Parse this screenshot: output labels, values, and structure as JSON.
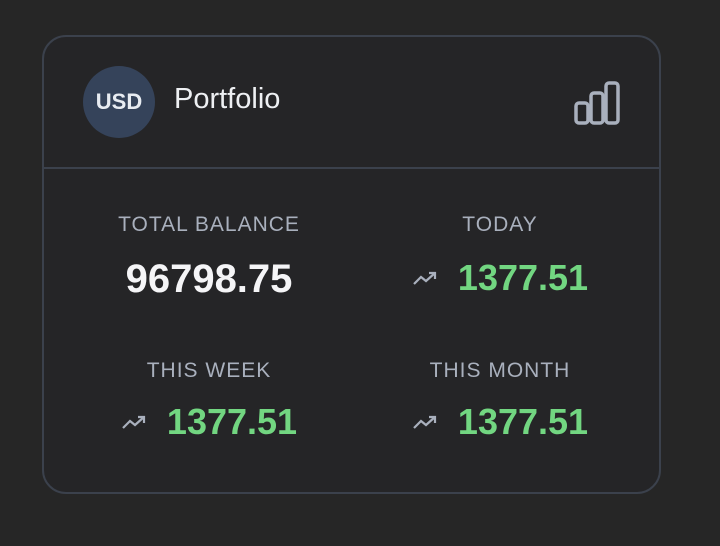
{
  "header": {
    "currency": "USD",
    "title": "Portfolio"
  },
  "stats": [
    {
      "label": "TOTAL BALANCE",
      "value": 96798.75
    },
    {
      "label": "TODAY",
      "value": 1377.51
    },
    {
      "label": "THIS WEEK",
      "value": 1377.51
    },
    {
      "label": "THIS MONTH",
      "value": 1377.51
    }
  ]
}
